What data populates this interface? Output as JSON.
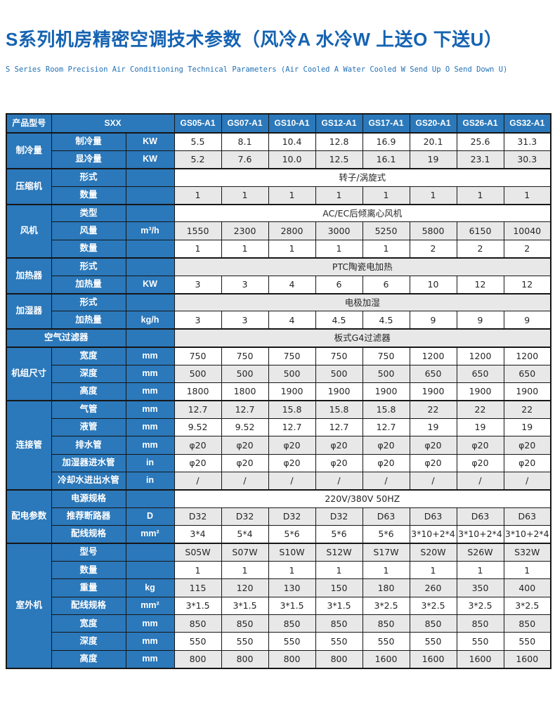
{
  "page": {
    "title": "S系列机房精密空调技术参数（风冷A 水冷W 上送O 下送U）",
    "subtitle": "S Series Room Precision Air Conditioning Technical Parameters (Air Cooled A Water Cooled W Send Up O Send Down U)"
  },
  "colors": {
    "cell_blue": "#2b78ba",
    "title_blue": "#1563b2",
    "row_shaded": "#e8e8e8",
    "border_dark": "#161616",
    "header_text": "#ffffff",
    "value_text": "#262626"
  },
  "table": {
    "corner_label": "产品型号",
    "series_label": "SXX",
    "models": [
      "GS05-A1",
      "GS07-A1",
      "GS10-A1",
      "GS12-A1",
      "GS17-A1",
      "GS20-A1",
      "GS26-A1",
      "GS32-A1"
    ],
    "sections": [
      {
        "group": "制冷量",
        "rows": [
          {
            "param": "制冷量",
            "unit": "KW",
            "values": [
              "5.5",
              "8.1",
              "10.4",
              "12.8",
              "16.9",
              "20.1",
              "25.6",
              "31.3"
            ]
          },
          {
            "param": "显冷量",
            "unit": "KW",
            "values": [
              "5.2",
              "7.6",
              "10.0",
              "12.5",
              "16.1",
              "19",
              "23.1",
              "30.3"
            ]
          }
        ]
      },
      {
        "group": "压缩机",
        "rows": [
          {
            "param": "形式",
            "unit": "",
            "merged_value": "转子/涡旋式"
          },
          {
            "param": "数量",
            "unit": "",
            "values": [
              "1",
              "1",
              "1",
              "1",
              "1",
              "1",
              "1",
              "1"
            ]
          }
        ]
      },
      {
        "group": "风机",
        "rows": [
          {
            "param": "类型",
            "unit": "",
            "merged_value": "AC/EC后倾离心风机"
          },
          {
            "param": "风量",
            "unit": "m³/h",
            "values": [
              "1550",
              "2300",
              "2800",
              "3000",
              "5250",
              "5800",
              "6150",
              "10040"
            ]
          },
          {
            "param": "数量",
            "unit": "",
            "values": [
              "1",
              "1",
              "1",
              "1",
              "1",
              "2",
              "2",
              "2"
            ]
          }
        ]
      },
      {
        "group": "加热器",
        "rows": [
          {
            "param": "形式",
            "unit": "",
            "merged_value": "PTC陶瓷电加热"
          },
          {
            "param": "加热量",
            "unit": "KW",
            "values": [
              "3",
              "3",
              "4",
              "6",
              "6",
              "10",
              "12",
              "12"
            ]
          }
        ]
      },
      {
        "group": "加湿器",
        "rows": [
          {
            "param": "形式",
            "unit": "",
            "merged_value": "电极加湿"
          },
          {
            "param": "加热量",
            "unit": "kg/h",
            "values": [
              "3",
              "3",
              "4",
              "4.5",
              "4.5",
              "9",
              "9",
              "9"
            ]
          }
        ]
      },
      {
        "group": "空气过滤器",
        "merged_label": true,
        "rows": [
          {
            "param": null,
            "unit": "",
            "merged_value": "板式G4过滤器"
          }
        ]
      },
      {
        "group": "机组尺寸",
        "rows": [
          {
            "param": "宽度",
            "unit": "mm",
            "values": [
              "750",
              "750",
              "750",
              "750",
              "750",
              "1200",
              "1200",
              "1200"
            ]
          },
          {
            "param": "深度",
            "unit": "mm",
            "values": [
              "500",
              "500",
              "500",
              "500",
              "500",
              "650",
              "650",
              "650"
            ]
          },
          {
            "param": "高度",
            "unit": "mm",
            "values": [
              "1800",
              "1800",
              "1900",
              "1900",
              "1900",
              "1900",
              "1900",
              "1900"
            ]
          }
        ]
      },
      {
        "group": "连接管",
        "rows": [
          {
            "param": "气管",
            "unit": "mm",
            "values": [
              "12.7",
              "12.7",
              "15.8",
              "15.8",
              "15.8",
              "22",
              "22",
              "22"
            ]
          },
          {
            "param": "液管",
            "unit": "mm",
            "values": [
              "9.52",
              "9.52",
              "12.7",
              "12.7",
              "12.7",
              "19",
              "19",
              "19"
            ]
          },
          {
            "param": "排水管",
            "unit": "mm",
            "values": [
              "φ20",
              "φ20",
              "φ20",
              "φ20",
              "φ20",
              "φ20",
              "φ20",
              "φ20"
            ]
          },
          {
            "param": "加湿器进水管",
            "unit": "in",
            "values": [
              "φ20",
              "φ20",
              "φ20",
              "φ20",
              "φ20",
              "φ20",
              "φ20",
              "φ20"
            ]
          },
          {
            "param": "冷却水进出水管",
            "unit": "in",
            "values": [
              "/",
              "/",
              "/",
              "/",
              "/",
              "/",
              "/",
              "/"
            ]
          }
        ]
      },
      {
        "group": "配电参数",
        "rows": [
          {
            "param": "电源规格",
            "unit": "",
            "merged_value": "220V/380V  50HZ"
          },
          {
            "param": "推荐断路器",
            "unit": "D",
            "values": [
              "D32",
              "D32",
              "D32",
              "D32",
              "D63",
              "D63",
              "D63",
              "D63"
            ]
          },
          {
            "param": "配线规格",
            "unit": "mm²",
            "values": [
              "3*4",
              "5*4",
              "5*6",
              "5*6",
              "5*6",
              "3*10+2*4",
              "3*10+2*4",
              "3*10+2*4"
            ]
          }
        ]
      },
      {
        "group": "室外机",
        "rows": [
          {
            "param": "型号",
            "unit": "",
            "values": [
              "S05W",
              "S07W",
              "S10W",
              "S12W",
              "S17W",
              "S20W",
              "S26W",
              "S32W"
            ]
          },
          {
            "param": "数量",
            "unit": "",
            "values": [
              "1",
              "1",
              "1",
              "1",
              "1",
              "1",
              "1",
              "1"
            ]
          },
          {
            "param": "重量",
            "unit": "kg",
            "values": [
              "115",
              "120",
              "130",
              "150",
              "180",
              "260",
              "350",
              "400"
            ]
          },
          {
            "param": "配线规格",
            "unit": "mm²",
            "values": [
              "3*1.5",
              "3*1.5",
              "3*1.5",
              "3*1.5",
              "3*2.5",
              "3*2.5",
              "3*2.5",
              "3*2.5"
            ]
          },
          {
            "param": "宽度",
            "unit": "mm",
            "values": [
              "850",
              "850",
              "850",
              "850",
              "850",
              "850",
              "850",
              "850"
            ]
          },
          {
            "param": "深度",
            "unit": "mm",
            "values": [
              "550",
              "550",
              "550",
              "550",
              "550",
              "550",
              "550",
              "550"
            ]
          },
          {
            "param": "高度",
            "unit": "mm",
            "values": [
              "800",
              "800",
              "800",
              "800",
              "1600",
              "1600",
              "1600",
              "1600"
            ]
          }
        ]
      }
    ]
  }
}
